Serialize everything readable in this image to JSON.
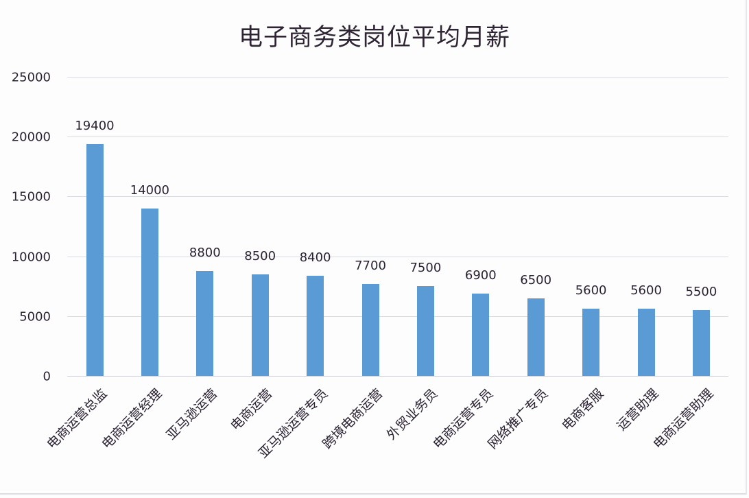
{
  "chart_data": {
    "type": "bar",
    "title": "电子商务类岗位平均月薪",
    "xlabel": "",
    "ylabel": "",
    "ylim": [
      0,
      25000
    ],
    "yticks": [
      0,
      5000,
      10000,
      15000,
      20000,
      25000
    ],
    "grid": true,
    "legend": null,
    "bar_color": "#5b9bd5",
    "categories": [
      "电商运营总监",
      "电商运营经理",
      "亚马逊运营",
      "电商运营",
      "亚马逊运营专员",
      "跨境电商运营",
      "外贸业务员",
      "电商运营专员",
      "网络推广专员",
      "电商客服",
      "运营助理",
      "电商运营助理"
    ],
    "values": [
      19400,
      14000,
      8800,
      8500,
      8400,
      7700,
      7500,
      6900,
      6500,
      5600,
      5600,
      5500
    ],
    "data_labels": [
      "19400",
      "14000",
      "8800",
      "8500",
      "8400",
      "7700",
      "7500",
      "6900",
      "6500",
      "5600",
      "5600",
      "5500"
    ]
  },
  "yaxis": {
    "tick_labels": [
      "25000",
      "20000",
      "15000",
      "10000",
      "5000",
      "0"
    ]
  }
}
